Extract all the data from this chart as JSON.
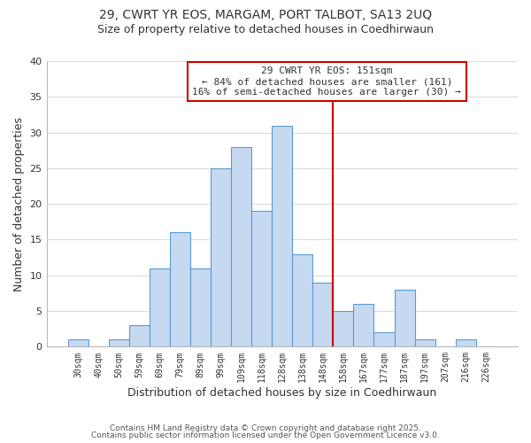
{
  "title1": "29, CWRT YR EOS, MARGAM, PORT TALBOT, SA13 2UQ",
  "title2": "Size of property relative to detached houses in Coedhirwaun",
  "xlabel": "Distribution of detached houses by size in Coedhirwaun",
  "ylabel": "Number of detached properties",
  "bar_labels": [
    "30sqm",
    "40sqm",
    "50sqm",
    "59sqm",
    "69sqm",
    "79sqm",
    "89sqm",
    "99sqm",
    "109sqm",
    "118sqm",
    "128sqm",
    "138sqm",
    "148sqm",
    "158sqm",
    "167sqm",
    "177sqm",
    "187sqm",
    "197sqm",
    "207sqm",
    "216sqm",
    "226sqm"
  ],
  "bar_values": [
    1,
    0,
    1,
    3,
    11,
    16,
    11,
    25,
    28,
    19,
    31,
    13,
    9,
    5,
    6,
    2,
    8,
    1,
    0,
    1,
    0
  ],
  "bar_color": "#c5d9f0",
  "bar_edge_color": "#5b9bd5",
  "vline_x_idx": 12,
  "vline_color": "#cc0000",
  "ylim": [
    0,
    40
  ],
  "yticks": [
    0,
    5,
    10,
    15,
    20,
    25,
    30,
    35,
    40
  ],
  "annotation_title": "29 CWRT YR EOS: 151sqm",
  "annotation_line1": "← 84% of detached houses are smaller (161)",
  "annotation_line2": "16% of semi-detached houses are larger (30) →",
  "footer1": "Contains HM Land Registry data © Crown copyright and database right 2025.",
  "footer2": "Contains public sector information licensed under the Open Government Licence v3.0.",
  "background_color": "#ffffff",
  "grid_color": "#dddddd"
}
